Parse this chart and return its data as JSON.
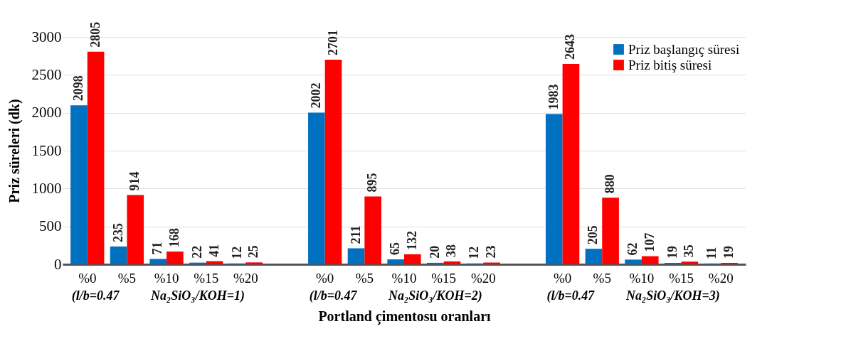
{
  "chart_data": {
    "type": "bar",
    "categories": [
      "%0",
      "%5",
      "%10",
      "%15",
      "%20",
      "%0",
      "%5",
      "%10",
      "%15",
      "%20",
      "%0",
      "%5",
      "%10",
      "%15",
      "%20"
    ],
    "series": [
      {
        "name": "Priz başlangıç süresi",
        "color": "#0070c0",
        "values": [
          2098,
          235,
          71,
          22,
          12,
          2002,
          211,
          65,
          20,
          12,
          1983,
          205,
          62,
          19,
          11
        ]
      },
      {
        "name": "Priz bitiş süresi",
        "color": "#ff0000",
        "values": [
          2805,
          914,
          168,
          41,
          25,
          2701,
          895,
          132,
          38,
          23,
          2643,
          880,
          107,
          35,
          19
        ]
      }
    ],
    "xlabel": "Portland çimentosu oranları",
    "ylabel": "Priz süreleri (dk)",
    "ylim": [
      0,
      3000
    ],
    "yticks": [
      0,
      500,
      1000,
      1500,
      2000,
      2500,
      3000
    ],
    "grid": "y",
    "legend": "top right",
    "data_labels": true,
    "annotations": [
      "(l/b=0.47",
      "Na₂SiO₃/KOH=1)",
      "(l/b=0.47",
      "Na₂SiO₃/KOH=2)",
      "(l/b=0.47",
      "Na₂SiO₃/KOH=3)"
    ]
  }
}
